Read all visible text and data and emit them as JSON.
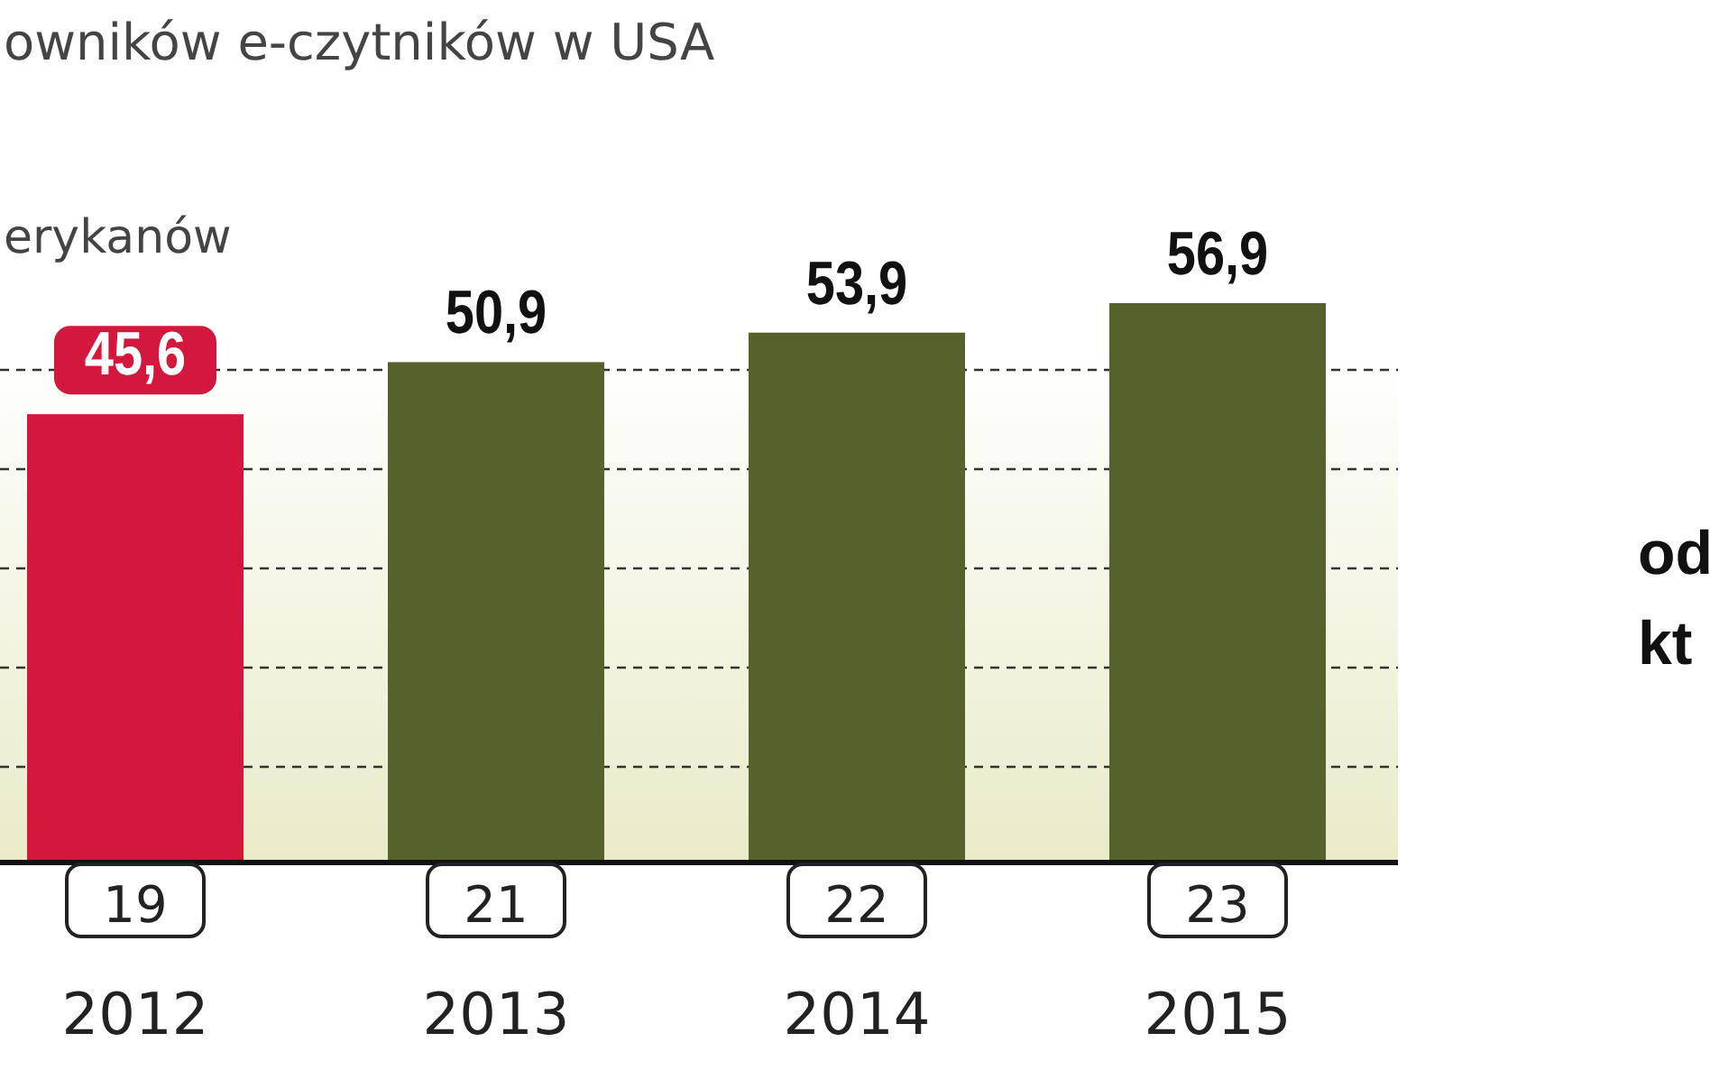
{
  "chart_data": {
    "type": "bar",
    "title": "owników e-czytników w USA",
    "subtitle": "erykanów",
    "categories": [
      "2012",
      "2013",
      "2014",
      "2015"
    ],
    "values": [
      45.6,
      50.9,
      53.9,
      56.9
    ],
    "colors": [
      "#d3173d",
      "#56622c",
      "#56622c",
      "#56622c"
    ],
    "value_labels": [
      "45,6",
      "50,9",
      "53,9",
      "56,9"
    ],
    "tick_labels": "x",
    "annotations": [
      "19",
      "21",
      "22",
      "23",
      "od",
      "kt"
    ]
  }
}
